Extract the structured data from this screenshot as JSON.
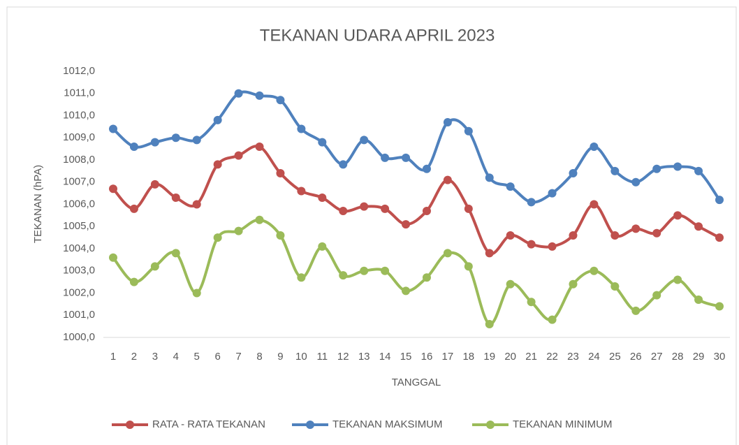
{
  "chart_data": {
    "type": "line",
    "title": "TEKANAN UDARA APRIL 2023",
    "x_label": "TANGGAL",
    "y_label": "TEKANAN (hPA)",
    "categories": [
      "1",
      "2",
      "3",
      "4",
      "5",
      "6",
      "7",
      "8",
      "9",
      "10",
      "11",
      "12",
      "13",
      "14",
      "15",
      "16",
      "17",
      "18",
      "19",
      "20",
      "21",
      "22",
      "23",
      "24",
      "25",
      "26",
      "27",
      "28",
      "29",
      "30"
    ],
    "series": [
      {
        "name": "RATA - RATA TEKANAN",
        "color": "#c0504d",
        "values": [
          1006.7,
          1005.8,
          1006.9,
          1006.3,
          1006.0,
          1007.8,
          1008.2,
          1008.6,
          1007.4,
          1006.6,
          1006.3,
          1005.7,
          1005.9,
          1005.8,
          1005.1,
          1005.7,
          1007.1,
          1005.8,
          1003.8,
          1004.6,
          1004.2,
          1004.1,
          1004.6,
          1006.0,
          1004.6,
          1004.9,
          1004.7,
          1005.5,
          1005.0,
          1004.5
        ]
      },
      {
        "name": "TEKANAN MAKSIMUM",
        "color": "#4f81bd",
        "values": [
          1009.4,
          1008.6,
          1008.8,
          1009.0,
          1008.9,
          1009.8,
          1011.0,
          1010.9,
          1010.7,
          1009.4,
          1008.8,
          1007.8,
          1008.9,
          1008.1,
          1008.1,
          1007.6,
          1009.7,
          1009.3,
          1007.2,
          1006.8,
          1006.1,
          1006.5,
          1007.4,
          1008.6,
          1007.5,
          1007.0,
          1007.6,
          1007.7,
          1007.5,
          1006.2
        ]
      },
      {
        "name": "TEKANAN MINIMUM",
        "color": "#9bbb59",
        "values": [
          1003.6,
          1002.5,
          1003.2,
          1003.8,
          1002.0,
          1004.5,
          1004.8,
          1005.3,
          1004.6,
          1002.7,
          1004.1,
          1002.8,
          1003.0,
          1003.0,
          1002.1,
          1002.7,
          1003.8,
          1003.2,
          1000.6,
          1002.4,
          1001.6,
          1000.8,
          1002.4,
          1003.0,
          1002.3,
          1001.2,
          1001.9,
          1002.6,
          1001.7,
          1001.4
        ]
      }
    ],
    "ylim": [
      1000,
      1012
    ],
    "yticks": [
      {
        "value": 1000,
        "label": "1000,0"
      },
      {
        "value": 1001,
        "label": "1001,0"
      },
      {
        "value": 1002,
        "label": "1002,0"
      },
      {
        "value": 1003,
        "label": "1003,0"
      },
      {
        "value": 1004,
        "label": "1004,0"
      },
      {
        "value": 1005,
        "label": "1005,0"
      },
      {
        "value": 1006,
        "label": "1006,0"
      },
      {
        "value": 1007,
        "label": "1007,0"
      },
      {
        "value": 1008,
        "label": "1008,0"
      },
      {
        "value": 1009,
        "label": "1009,0"
      },
      {
        "value": 1010,
        "label": "1010,0"
      },
      {
        "value": 1011,
        "label": "1011,0"
      },
      {
        "value": 1012,
        "label": "1012,0"
      }
    ],
    "grid": false,
    "legend": "bottom"
  }
}
